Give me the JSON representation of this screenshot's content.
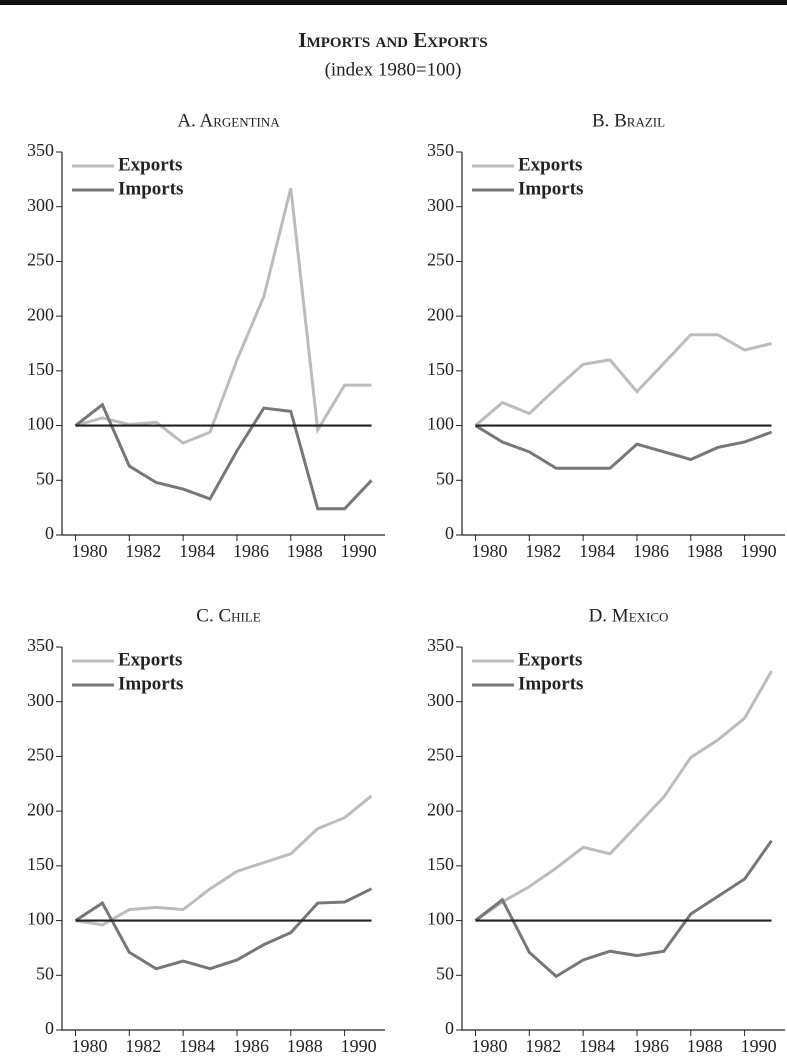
{
  "title": "Imports and Exports",
  "subtitle": "(index 1980=100)",
  "chart_data": [
    {
      "type": "line",
      "title": "A. Argentina",
      "x": [
        1980,
        1981,
        1982,
        1983,
        1984,
        1985,
        1986,
        1987,
        1988,
        1989,
        1990,
        1991
      ],
      "xlim": [
        1979.5,
        1991.5
      ],
      "xticks": [
        1980,
        1982,
        1984,
        1986,
        1988,
        1990
      ],
      "ylim": [
        0,
        350
      ],
      "yticks": [
        0,
        50,
        100,
        150,
        200,
        250,
        300,
        350
      ],
      "reference_line": 100,
      "legend": "upper left",
      "series": [
        {
          "name": "Exports",
          "color": "#bcbcbc",
          "values": [
            100,
            107,
            101,
            103,
            84,
            94,
            160,
            218,
            317,
            96,
            137,
            137
          ]
        },
        {
          "name": "Imports",
          "color": "#777777",
          "values": [
            100,
            119,
            63,
            48,
            42,
            33,
            77,
            116,
            113,
            24,
            24,
            50
          ]
        }
      ]
    },
    {
      "type": "line",
      "title": "B. Brazil",
      "x": [
        1980,
        1981,
        1982,
        1983,
        1984,
        1985,
        1986,
        1987,
        1988,
        1989,
        1990,
        1991
      ],
      "xlim": [
        1979.5,
        1991.5
      ],
      "xticks": [
        1980,
        1982,
        1984,
        1986,
        1988,
        1990
      ],
      "ylim": [
        0,
        350
      ],
      "yticks": [
        0,
        50,
        100,
        150,
        200,
        250,
        300,
        350
      ],
      "reference_line": 100,
      "legend": "upper left",
      "series": [
        {
          "name": "Exports",
          "color": "#bcbcbc",
          "values": [
            100,
            121,
            111,
            134,
            156,
            160,
            131,
            157,
            183,
            183,
            169,
            175
          ]
        },
        {
          "name": "Imports",
          "color": "#777777",
          "values": [
            100,
            85,
            76,
            61,
            61,
            61,
            83,
            76,
            69,
            80,
            85,
            94
          ]
        }
      ]
    },
    {
      "type": "line",
      "title": "C. Chile",
      "x": [
        1980,
        1981,
        1982,
        1983,
        1984,
        1985,
        1986,
        1987,
        1988,
        1989,
        1990,
        1991
      ],
      "xlim": [
        1979.5,
        1991.5
      ],
      "xticks": [
        1980,
        1982,
        1984,
        1986,
        1988,
        1990
      ],
      "ylim": [
        0,
        350
      ],
      "yticks": [
        0,
        50,
        100,
        150,
        200,
        250,
        300,
        350
      ],
      "reference_line": 100,
      "legend": "upper left",
      "series": [
        {
          "name": "Exports",
          "color": "#bcbcbc",
          "values": [
            100,
            96,
            110,
            112,
            110,
            129,
            145,
            153,
            161,
            184,
            194,
            214
          ]
        },
        {
          "name": "Imports",
          "color": "#777777",
          "values": [
            100,
            116,
            71,
            56,
            63,
            56,
            64,
            78,
            89,
            116,
            117,
            129
          ]
        }
      ]
    },
    {
      "type": "line",
      "title": "D. Mexico",
      "x": [
        1980,
        1981,
        1982,
        1983,
        1984,
        1985,
        1986,
        1987,
        1988,
        1989,
        1990,
        1991
      ],
      "xlim": [
        1979.5,
        1991.5
      ],
      "xticks": [
        1980,
        1982,
        1984,
        1986,
        1988,
        1990
      ],
      "ylim": [
        0,
        350
      ],
      "yticks": [
        0,
        50,
        100,
        150,
        200,
        250,
        300,
        350
      ],
      "reference_line": 100,
      "legend": "upper left",
      "series": [
        {
          "name": "Exports",
          "color": "#bcbcbc",
          "values": [
            100,
            117,
            131,
            148,
            167,
            161,
            187,
            213,
            249,
            265,
            285,
            328
          ]
        },
        {
          "name": "Imports",
          "color": "#777777",
          "values": [
            100,
            119,
            71,
            49,
            64,
            72,
            68,
            72,
            106,
            122,
            138,
            173
          ]
        }
      ]
    }
  ]
}
